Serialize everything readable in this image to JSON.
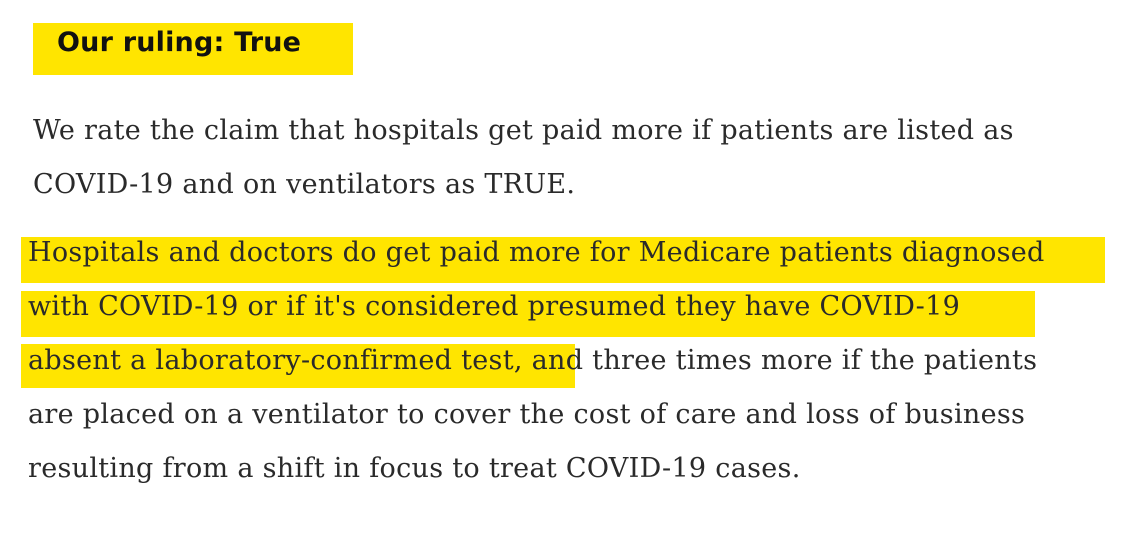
{
  "ruling": {
    "heading": "Our ruling: True",
    "highlight_color": "#ffe500"
  },
  "paragraph1": {
    "lines": [
      "We rate the claim that hospitals get paid more if patients are listed as",
      "COVID-19 and on ventilators as TRUE."
    ]
  },
  "paragraph2": {
    "lines": [
      "Hospitals and doctors do get paid more for Medicare patients diagnosed",
      "with COVID-19 or if it's considered presumed they have COVID-19",
      "absent a laboratory-confirmed test, and three times more if the patients",
      "are placed on a ventilator to cover the cost of care and loss of business",
      "resulting from a shift in focus to treat COVID-19 cases."
    ]
  }
}
